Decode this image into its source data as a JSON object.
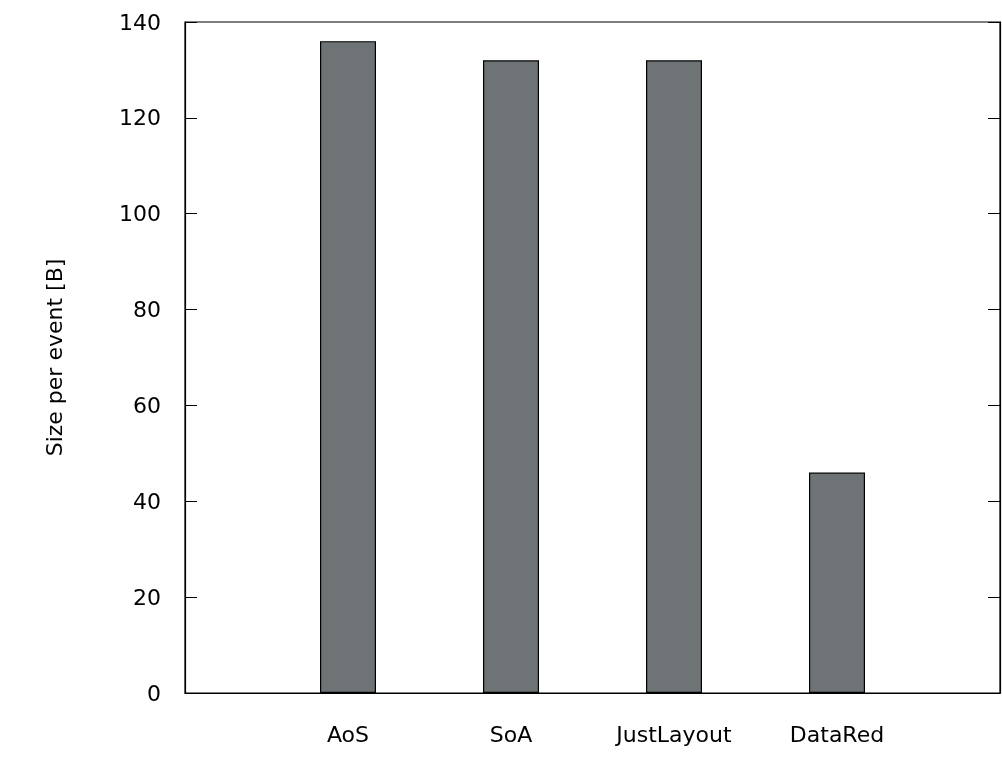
{
  "chart_data": {
    "type": "bar",
    "ylabel": "Size per event [B]",
    "categories": [
      "AoS",
      "SoA",
      "JustLayout",
      "DataRed"
    ],
    "values": [
      136,
      132,
      132,
      46
    ],
    "color": "#6e7375",
    "ylim": [
      0,
      140
    ],
    "yticks": [
      0,
      20,
      40,
      60,
      80,
      100,
      120,
      140
    ],
    "grid": false
  }
}
